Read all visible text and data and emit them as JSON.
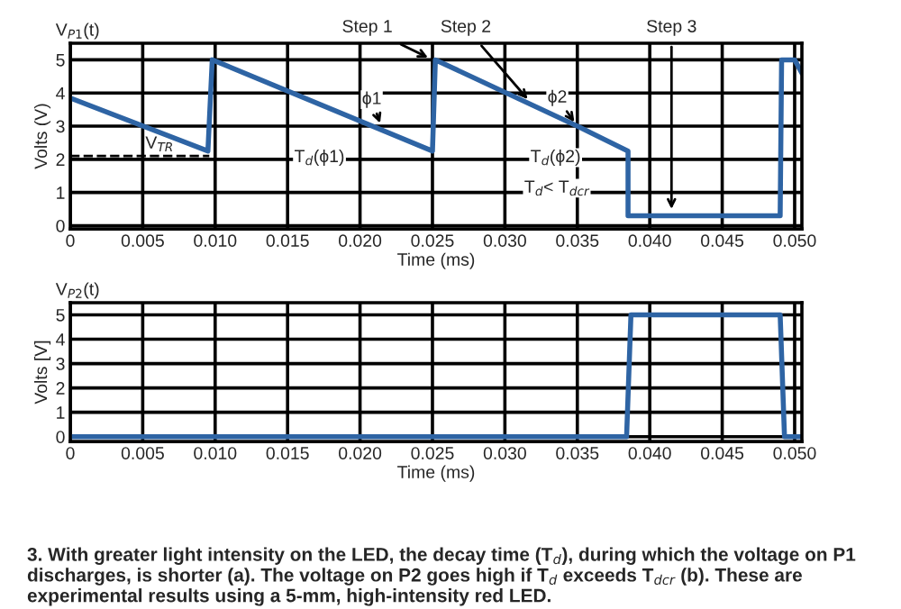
{
  "chart_data": [
    {
      "type": "line",
      "title": "V$_{P1}$(t)",
      "xlabel": "Time (ms)",
      "ylabel": "Volts (V)",
      "xlim": [
        0,
        0.0505
      ],
      "ylim": [
        -0.1,
        5.5
      ],
      "xticks": [
        {
          "value": 0,
          "label": "0"
        },
        {
          "value": 0.005,
          "label": "0.005"
        },
        {
          "value": 0.01,
          "label": "0.010"
        },
        {
          "value": 0.015,
          "label": "0.015"
        },
        {
          "value": 0.02,
          "label": "0.020"
        },
        {
          "value": 0.025,
          "label": "0.025"
        },
        {
          "value": 0.03,
          "label": "0.030"
        },
        {
          "value": 0.035,
          "label": "0.035"
        },
        {
          "value": 0.04,
          "label": "0.040"
        },
        {
          "value": 0.045,
          "label": "0.045"
        },
        {
          "value": 0.05,
          "label": "0.050"
        }
      ],
      "yticks": [
        0,
        1,
        2,
        3,
        4,
        5
      ],
      "grid": true,
      "line_style": "solid",
      "marker": "none",
      "series": [
        {
          "color": "#2e64a4",
          "x": [
            0,
            0.0095,
            0.0098,
            0.025,
            0.0252,
            0.035,
            0.0385,
            0.0385,
            0.049,
            0.0491,
            0.05,
            0.0505
          ],
          "values": [
            3.85,
            2.25,
            5.0,
            2.25,
            5.0,
            3.0,
            2.25,
            0.3,
            0.3,
            5.0,
            5.0,
            4.6
          ]
        }
      ],
      "ref_lines": [
        {
          "axis": "y",
          "value": 2.1,
          "label": "V$_{TR}$",
          "color": "#000000",
          "line_style": "dashed"
        }
      ],
      "annotations": [
        {
          "text": "Step 1",
          "x": 0.025,
          "y": 5.0
        },
        {
          "text": "Step 2",
          "x": 0.0318,
          "y": 3.7
        },
        {
          "text": "Step 3",
          "x": 0.0415,
          "y": 0.35
        },
        {
          "text": "ϕ1",
          "x": 0.0215,
          "y": 2.95
        },
        {
          "text": "ϕ2",
          "x": 0.035,
          "y": 3.0
        },
        {
          "text": "T$_{d}$(ϕ1)",
          "x": 0.0172,
          "y": 2.05
        },
        {
          "text": "T$_{d}$(ϕ2)",
          "x": 0.0335,
          "y": 2.05
        },
        "T$_{d}$< T$_{dcr}$"
      ]
    },
    {
      "type": "line",
      "title": "V$_{P2}$(t)",
      "xlabel": "Time (ms)",
      "ylabel": "Volts [V]",
      "xlim": [
        0,
        0.0505
      ],
      "ylim": [
        -0.2,
        5.5
      ],
      "xticks": [
        {
          "value": 0,
          "label": "0"
        },
        {
          "value": 0.005,
          "label": "0.005"
        },
        {
          "value": 0.01,
          "label": "0.010"
        },
        {
          "value": 0.015,
          "label": "0.015"
        },
        {
          "value": 0.02,
          "label": "0.020"
        },
        {
          "value": 0.025,
          "label": "0.025"
        },
        {
          "value": 0.03,
          "label": "0.030"
        },
        {
          "value": 0.035,
          "label": "0.035"
        },
        {
          "value": 0.04,
          "label": "0.040"
        },
        {
          "value": 0.045,
          "label": "0.045"
        },
        {
          "value": 0.05,
          "label": "0.050"
        }
      ],
      "yticks": [
        0,
        1,
        2,
        3,
        4,
        5
      ],
      "grid": true,
      "line_style": "solid",
      "marker": "none",
      "series": [
        {
          "color": "#2e64a4",
          "x": [
            0,
            0.0384,
            0.0387,
            0.049,
            0.0493,
            0.0505
          ],
          "values": [
            0,
            0,
            5.0,
            5.0,
            0,
            0
          ]
        }
      ],
      "annotations": [
        "3. With greater light intensity on the LED, the decay time (T$_{d}$), during which the voltage on P1 discharges, is shorter (a). The voltage on P2 goes high if T$_{d}$ exceeds T$_{dcr}$ (b). These are experimental results using a 5-mm, high-intensity red LED."
      ]
    }
  ]
}
